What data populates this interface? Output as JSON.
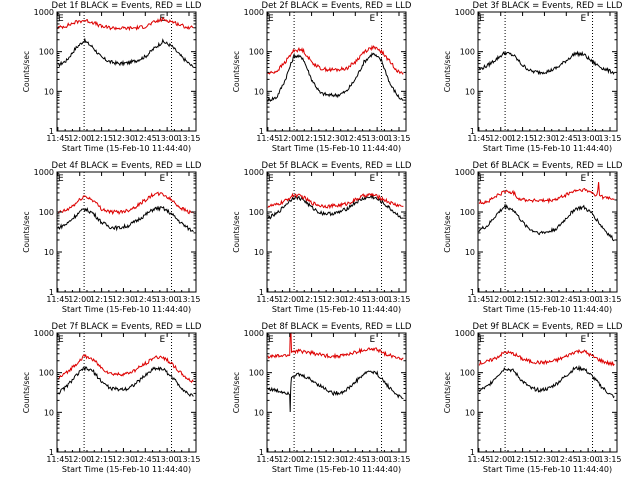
{
  "figure": {
    "xaxis_title": "Start Time (15-Feb-10 11:44:40)",
    "ylabel": "Counts/sec",
    "marker_label": "E",
    "colors": {
      "events": "#000000",
      "lld": "#dd0000",
      "axes": "#000000"
    }
  },
  "chart_data": [
    {
      "type": "line",
      "title": "Det 1f BLACK = Events, RED = LLD",
      "xlim": [
        11.74,
        13.33
      ],
      "ylim": [
        1,
        1000
      ],
      "yscale": "log",
      "x_ticks": [
        11.75,
        12.0,
        12.25,
        12.5,
        12.75,
        13.0,
        13.25
      ],
      "x_tick_labels": [
        "11:45",
        "12:00",
        "12:15",
        "12:30",
        "12:45",
        "13:00",
        "13:15"
      ],
      "y_ticks": [
        1,
        10,
        100,
        1000
      ],
      "y_tick_labels": [
        "1",
        "10",
        "100",
        "1000"
      ],
      "vlines": [
        12.05,
        13.05
      ],
      "series": [
        {
          "name": "Events",
          "color": "#000000",
          "x": [
            11.75,
            11.85,
            11.95,
            12.05,
            12.15,
            12.25,
            12.35,
            12.45,
            12.55,
            12.65,
            12.75,
            12.85,
            12.95,
            13.05,
            13.15,
            13.25,
            13.3
          ],
          "y": [
            45,
            60,
            120,
            190,
            130,
            70,
            55,
            50,
            52,
            60,
            75,
            120,
            180,
            140,
            80,
            50,
            40
          ]
        },
        {
          "name": "LLD",
          "color": "#dd0000",
          "x": [
            11.75,
            11.85,
            11.95,
            12.05,
            12.15,
            12.25,
            12.35,
            12.45,
            12.55,
            12.65,
            12.75,
            12.85,
            12.95,
            13.05,
            13.15,
            13.25,
            13.3
          ],
          "y": [
            400,
            450,
            550,
            620,
            550,
            430,
            400,
            390,
            390,
            400,
            430,
            550,
            650,
            580,
            470,
            400,
            400
          ]
        }
      ]
    },
    {
      "type": "line",
      "title": "Det 2f BLACK = Events, RED = LLD",
      "xlim": [
        11.74,
        13.33
      ],
      "ylim": [
        1,
        1000
      ],
      "yscale": "log",
      "x_ticks": [
        11.75,
        12.0,
        12.25,
        12.5,
        12.75,
        13.0,
        13.25
      ],
      "x_tick_labels": [
        "11:45",
        "12:00",
        "12:15",
        "12:30",
        "12:45",
        "13:00",
        "13:15"
      ],
      "y_ticks": [
        1,
        10,
        100,
        1000
      ],
      "y_tick_labels": [
        "1",
        "10",
        "100",
        "1000"
      ],
      "vlines": [
        12.05,
        13.05
      ],
      "series": [
        {
          "name": "Events",
          "color": "#000000",
          "x": [
            11.75,
            11.85,
            11.95,
            12.05,
            12.15,
            12.25,
            12.35,
            12.45,
            12.55,
            12.65,
            12.75,
            12.85,
            12.95,
            13.05,
            13.15,
            13.25,
            13.3
          ],
          "y": [
            6,
            7,
            20,
            80,
            70,
            20,
            9,
            8,
            8,
            10,
            20,
            55,
            90,
            60,
            15,
            7,
            6
          ]
        },
        {
          "name": "LLD",
          "color": "#dd0000",
          "x": [
            11.75,
            11.85,
            11.95,
            12.05,
            12.15,
            12.25,
            12.35,
            12.45,
            12.55,
            12.65,
            12.75,
            12.85,
            12.95,
            13.05,
            13.15,
            13.25,
            13.3
          ],
          "y": [
            28,
            32,
            55,
            110,
            110,
            55,
            38,
            35,
            35,
            38,
            55,
            100,
            130,
            100,
            55,
            30,
            28
          ]
        }
      ]
    },
    {
      "type": "line",
      "title": "Det 3f BLACK = Events, RED = LLD",
      "xlim": [
        11.74,
        13.33
      ],
      "ylim": [
        1,
        1000
      ],
      "yscale": "log",
      "x_ticks": [
        11.75,
        12.0,
        12.25,
        12.5,
        12.75,
        13.0,
        13.25
      ],
      "x_tick_labels": [
        "11:45",
        "12:00",
        "12:15",
        "12:30",
        "12:45",
        "13:00",
        "13:15"
      ],
      "y_ticks": [
        1,
        10,
        100,
        1000
      ],
      "y_tick_labels": [
        "1",
        "10",
        "100",
        "1000"
      ],
      "vlines": [
        12.05,
        13.05
      ],
      "series": [
        {
          "name": "Events",
          "color": "#000000",
          "x": [
            11.75,
            11.85,
            11.95,
            12.05,
            12.15,
            12.25,
            12.35,
            12.45,
            12.55,
            12.65,
            12.75,
            12.85,
            12.95,
            13.05,
            13.15,
            13.25,
            13.3
          ],
          "y": [
            35,
            45,
            65,
            95,
            80,
            45,
            32,
            30,
            32,
            40,
            60,
            90,
            85,
            55,
            40,
            32,
            30
          ]
        }
      ]
    },
    {
      "type": "line",
      "title": "Det 4f BLACK = Events, RED = LLD",
      "xlim": [
        11.74,
        13.33
      ],
      "ylim": [
        1,
        1000
      ],
      "yscale": "log",
      "x_ticks": [
        11.75,
        12.0,
        12.25,
        12.5,
        12.75,
        13.0,
        13.25
      ],
      "x_tick_labels": [
        "11:45",
        "12:00",
        "12:15",
        "12:30",
        "12:45",
        "13:00",
        "13:15"
      ],
      "y_ticks": [
        1,
        10,
        100,
        1000
      ],
      "y_tick_labels": [
        "1",
        "10",
        "100",
        "1000"
      ],
      "vlines": [
        12.05,
        13.05
      ],
      "series": [
        {
          "name": "Events",
          "color": "#000000",
          "x": [
            11.75,
            11.85,
            11.95,
            12.05,
            12.15,
            12.25,
            12.35,
            12.45,
            12.55,
            12.65,
            12.75,
            12.85,
            12.95,
            13.05,
            13.15,
            13.25,
            13.3
          ],
          "y": [
            40,
            50,
            80,
            120,
            95,
            55,
            42,
            40,
            45,
            60,
            85,
            120,
            125,
            90,
            55,
            38,
            32
          ]
        },
        {
          "name": "LLD",
          "color": "#dd0000",
          "x": [
            11.75,
            11.85,
            11.95,
            12.05,
            12.15,
            12.25,
            12.35,
            12.45,
            12.55,
            12.65,
            12.75,
            12.85,
            12.95,
            13.05,
            13.15,
            13.25,
            13.3
          ],
          "y": [
            95,
            110,
            160,
            250,
            200,
            120,
            100,
            100,
            110,
            140,
            200,
            280,
            280,
            200,
            130,
            100,
            95
          ]
        }
      ]
    },
    {
      "type": "line",
      "title": "Det 5f BLACK = Events, RED = LLD",
      "xlim": [
        11.74,
        13.33
      ],
      "ylim": [
        1,
        1000
      ],
      "yscale": "log",
      "x_ticks": [
        11.75,
        12.0,
        12.25,
        12.5,
        12.75,
        13.0,
        13.25
      ],
      "x_tick_labels": [
        "11:45",
        "12:00",
        "12:15",
        "12:30",
        "12:45",
        "13:00",
        "13:15"
      ],
      "y_ticks": [
        1,
        10,
        100,
        1000
      ],
      "y_tick_labels": [
        "1",
        "10",
        "100",
        "1000"
      ],
      "vlines": [
        12.05,
        13.05
      ],
      "series": [
        {
          "name": "Events",
          "color": "#000000",
          "x": [
            11.75,
            11.85,
            11.95,
            12.05,
            12.15,
            12.25,
            12.35,
            12.45,
            12.55,
            12.65,
            12.75,
            12.85,
            12.95,
            13.05,
            13.15,
            13.25,
            13.3
          ],
          "y": [
            70,
            90,
            150,
            240,
            210,
            130,
            95,
            90,
            95,
            120,
            170,
            220,
            240,
            180,
            120,
            80,
            70
          ]
        },
        {
          "name": "LLD",
          "color": "#dd0000",
          "x": [
            11.75,
            11.85,
            11.95,
            12.05,
            12.15,
            12.25,
            12.35,
            12.45,
            12.55,
            12.65,
            12.75,
            12.85,
            12.95,
            13.05,
            13.15,
            13.25,
            13.3
          ],
          "y": [
            140,
            150,
            190,
            270,
            240,
            170,
            145,
            140,
            145,
            160,
            200,
            260,
            270,
            220,
            170,
            145,
            140
          ]
        }
      ]
    },
    {
      "type": "line",
      "title": "Det 6f BLACK = Events, RED = LLD",
      "xlim": [
        11.74,
        13.33
      ],
      "ylim": [
        1,
        1000
      ],
      "yscale": "log",
      "x_ticks": [
        11.75,
        12.0,
        12.25,
        12.5,
        12.75,
        13.0,
        13.25
      ],
      "x_tick_labels": [
        "11:45",
        "12:00",
        "12:15",
        "12:30",
        "12:45",
        "13:00",
        "13:15"
      ],
      "y_ticks": [
        1,
        10,
        100,
        1000
      ],
      "y_tick_labels": [
        "1",
        "10",
        "100",
        "1000"
      ],
      "vlines": [
        12.05,
        13.05
      ],
      "series": [
        {
          "name": "Events",
          "color": "#000000",
          "x": [
            11.75,
            11.85,
            11.95,
            12.05,
            12.15,
            12.25,
            12.35,
            12.45,
            12.55,
            12.65,
            12.75,
            12.85,
            12.95,
            13.05,
            13.15,
            13.25,
            13.3
          ],
          "y": [
            35,
            45,
            85,
            140,
            110,
            55,
            35,
            30,
            32,
            40,
            70,
            120,
            130,
            90,
            45,
            25,
            20
          ]
        },
        {
          "name": "LLD",
          "color": "#dd0000",
          "x": [
            11.75,
            11.85,
            11.95,
            12.05,
            12.15,
            12.2,
            12.3,
            12.45,
            12.55,
            12.65,
            12.75,
            12.85,
            12.95,
            13.05,
            13.1,
            13.12,
            13.13,
            13.15,
            13.25,
            13.3
          ],
          "y": [
            170,
            180,
            250,
            330,
            300,
            220,
            200,
            190,
            190,
            210,
            270,
            340,
            360,
            300,
            260,
            550,
            280,
            240,
            220,
            210
          ]
        }
      ]
    },
    {
      "type": "line",
      "title": "Det 7f BLACK = Events, RED = LLD",
      "xlim": [
        11.74,
        13.33
      ],
      "ylim": [
        1,
        1000
      ],
      "yscale": "log",
      "x_ticks": [
        11.75,
        12.0,
        12.25,
        12.5,
        12.75,
        13.0,
        13.25
      ],
      "x_tick_labels": [
        "11:45",
        "12:00",
        "12:15",
        "12:30",
        "12:45",
        "13:00",
        "13:15"
      ],
      "y_ticks": [
        1,
        10,
        100,
        1000
      ],
      "y_tick_labels": [
        "1",
        "10",
        "100",
        "1000"
      ],
      "vlines": [
        12.05,
        13.05
      ],
      "series": [
        {
          "name": "Events",
          "color": "#000000",
          "x": [
            11.75,
            11.85,
            11.95,
            12.05,
            12.15,
            12.25,
            12.35,
            12.45,
            12.55,
            12.65,
            12.75,
            12.85,
            12.95,
            13.05,
            13.15,
            13.25,
            13.3
          ],
          "y": [
            30,
            45,
            80,
            130,
            110,
            60,
            40,
            38,
            40,
            55,
            85,
            130,
            125,
            80,
            45,
            28,
            25
          ]
        },
        {
          "name": "LLD",
          "color": "#dd0000",
          "x": [
            11.75,
            11.85,
            11.95,
            12.05,
            12.15,
            12.25,
            12.35,
            12.45,
            12.55,
            12.65,
            12.75,
            12.85,
            12.95,
            13.05,
            13.15,
            13.25,
            13.3
          ],
          "y": [
            70,
            100,
            160,
            260,
            220,
            130,
            95,
            90,
            95,
            120,
            170,
            240,
            250,
            170,
            100,
            65,
            60
          ]
        }
      ]
    },
    {
      "type": "line",
      "title": "Det 8f BLACK = Events, RED = LLD",
      "xlim": [
        11.74,
        13.33
      ],
      "ylim": [
        1,
        1000
      ],
      "yscale": "log",
      "x_ticks": [
        11.75,
        12.0,
        12.25,
        12.5,
        12.75,
        13.0,
        13.25
      ],
      "x_tick_labels": [
        "11:45",
        "12:00",
        "12:15",
        "12:30",
        "12:45",
        "13:00",
        "13:15"
      ],
      "y_ticks": [
        1,
        10,
        100,
        1000
      ],
      "y_tick_labels": [
        "1",
        "10",
        "100",
        "1000"
      ],
      "vlines": [
        12.05,
        13.05
      ],
      "series": [
        {
          "name": "Events",
          "color": "#000000",
          "x": [
            11.75,
            11.85,
            11.95,
            12.0,
            12.005,
            12.01,
            12.015,
            12.02,
            12.1,
            12.2,
            12.3,
            12.4,
            12.5,
            12.6,
            12.7,
            12.8,
            12.9,
            13.0,
            13.05,
            13.15,
            13.25,
            13.3
          ],
          "y": [
            40,
            35,
            32,
            30,
            10,
            35,
            60,
            80,
            90,
            75,
            55,
            40,
            30,
            32,
            45,
            75,
            110,
            95,
            70,
            40,
            25,
            22
          ]
        },
        {
          "name": "LLD",
          "color": "#dd0000",
          "x": [
            11.75,
            11.85,
            11.95,
            12.0,
            12.005,
            12.015,
            12.02,
            12.1,
            12.2,
            12.3,
            12.4,
            12.5,
            12.6,
            12.7,
            12.8,
            12.9,
            13.0,
            13.05,
            13.15,
            13.25,
            13.3
          ],
          "y": [
            250,
            260,
            270,
            280,
            1000,
            1000,
            340,
            350,
            330,
            300,
            270,
            260,
            270,
            300,
            350,
            390,
            380,
            330,
            270,
            240,
            230
          ]
        }
      ]
    },
    {
      "type": "line",
      "title": "Det 9f BLACK = Events, RED = LLD",
      "xlim": [
        11.74,
        13.33
      ],
      "ylim": [
        1,
        1000
      ],
      "yscale": "log",
      "x_ticks": [
        11.75,
        12.0,
        12.25,
        12.5,
        12.75,
        13.0,
        13.25
      ],
      "x_tick_labels": [
        "11:45",
        "12:00",
        "12:15",
        "12:30",
        "12:45",
        "13:00",
        "13:15"
      ],
      "y_ticks": [
        1,
        10,
        100,
        1000
      ],
      "y_tick_labels": [
        "1",
        "10",
        "100",
        "1000"
      ],
      "vlines": [
        12.05,
        13.05
      ],
      "series": [
        {
          "name": "Events",
          "color": "#000000",
          "x": [
            11.75,
            11.85,
            11.95,
            12.05,
            12.15,
            12.25,
            12.35,
            12.45,
            12.55,
            12.65,
            12.75,
            12.85,
            12.95,
            13.05,
            13.15,
            13.25,
            13.3
          ],
          "y": [
            35,
            45,
            80,
            130,
            110,
            60,
            40,
            36,
            40,
            55,
            85,
            130,
            125,
            80,
            45,
            28,
            25
          ]
        },
        {
          "name": "LLD",
          "color": "#dd0000",
          "x": [
            11.75,
            11.85,
            11.95,
            12.05,
            12.15,
            12.25,
            12.35,
            12.45,
            12.55,
            12.65,
            12.75,
            12.85,
            12.95,
            13.05,
            13.15,
            13.25,
            13.3
          ],
          "y": [
            170,
            190,
            240,
            330,
            300,
            220,
            190,
            180,
            185,
            210,
            260,
            340,
            350,
            260,
            200,
            170,
            165
          ]
        }
      ]
    }
  ]
}
